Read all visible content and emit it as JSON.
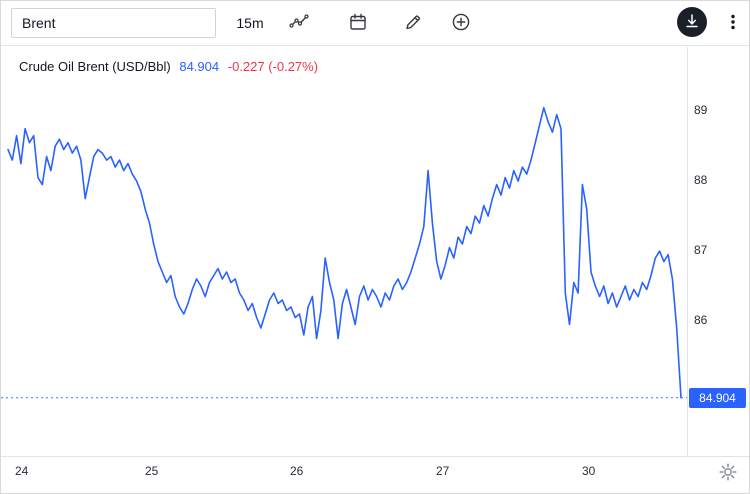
{
  "toolbar": {
    "symbol": "Brent",
    "interval": "15m"
  },
  "legend": {
    "title": "Crude Oil Brent (USD/Bbl)",
    "price": "84.904",
    "change": "-0.227 (-0.27%)"
  },
  "icons": {
    "chart_type": "line-chart-icon",
    "calendar": "calendar-icon",
    "draw": "pencil-icon",
    "compare": "plus-circle-icon",
    "download": "download-icon",
    "more": "kebab-menu-icon",
    "settings": "gear-icon"
  },
  "colors": {
    "accent_blue": "#2962ff",
    "negative_red": "#f23645",
    "text_dark": "#131722",
    "border_gray": "#e0e3eb",
    "download_button_bg": "#1b1f27"
  },
  "chart_data": {
    "type": "line",
    "title": "Crude Oil Brent (USD/Bbl)",
    "interval": "15m",
    "line_color": "#2962ff",
    "last_price": 84.904,
    "last_price_label": "84.904",
    "change": "-0.227",
    "change_pct": "-0.27%",
    "ylim": [
      84.07,
      89.36
    ],
    "y_ticks": [
      89,
      88,
      87,
      86
    ],
    "x_labels": [
      "24",
      "25",
      "26",
      "27",
      "30"
    ],
    "x_label_indices": [
      0,
      34,
      68,
      102,
      136
    ],
    "grid": false,
    "legend_position": "top-left",
    "values": [
      88.45,
      88.3,
      88.65,
      88.25,
      88.75,
      88.55,
      88.65,
      88.05,
      87.95,
      88.35,
      88.15,
      88.5,
      88.6,
      88.45,
      88.55,
      88.4,
      88.5,
      88.3,
      87.75,
      88.05,
      88.35,
      88.45,
      88.4,
      88.3,
      88.35,
      88.2,
      88.3,
      88.15,
      88.25,
      88.1,
      88.0,
      87.85,
      87.6,
      87.4,
      87.1,
      86.85,
      86.7,
      86.55,
      86.65,
      86.35,
      86.2,
      86.1,
      86.25,
      86.45,
      86.6,
      86.5,
      86.35,
      86.55,
      86.65,
      86.75,
      86.6,
      86.7,
      86.55,
      86.6,
      86.4,
      86.3,
      86.15,
      86.25,
      86.05,
      85.9,
      86.1,
      86.3,
      86.4,
      86.25,
      86.3,
      86.15,
      86.2,
      86.05,
      86.1,
      85.8,
      86.2,
      86.35,
      85.75,
      86.15,
      86.9,
      86.55,
      86.3,
      85.75,
      86.25,
      86.45,
      86.2,
      85.95,
      86.35,
      86.5,
      86.3,
      86.45,
      86.35,
      86.2,
      86.4,
      86.3,
      86.5,
      86.6,
      86.45,
      86.55,
      86.7,
      86.9,
      87.1,
      87.35,
      88.15,
      87.4,
      86.85,
      86.6,
      86.8,
      87.05,
      86.9,
      87.2,
      87.1,
      87.35,
      87.25,
      87.5,
      87.4,
      87.65,
      87.5,
      87.75,
      87.95,
      87.8,
      88.05,
      87.9,
      88.15,
      88.0,
      88.2,
      88.1,
      88.3,
      88.55,
      88.8,
      89.05,
      88.85,
      88.7,
      88.95,
      88.75,
      86.4,
      85.95,
      86.55,
      86.4,
      87.95,
      87.6,
      86.7,
      86.5,
      86.35,
      86.5,
      86.25,
      86.4,
      86.2,
      86.35,
      86.5,
      86.3,
      86.45,
      86.35,
      86.55,
      86.45,
      86.65,
      86.9,
      87.0,
      86.85,
      86.95,
      86.6,
      85.9,
      84.904
    ]
  }
}
